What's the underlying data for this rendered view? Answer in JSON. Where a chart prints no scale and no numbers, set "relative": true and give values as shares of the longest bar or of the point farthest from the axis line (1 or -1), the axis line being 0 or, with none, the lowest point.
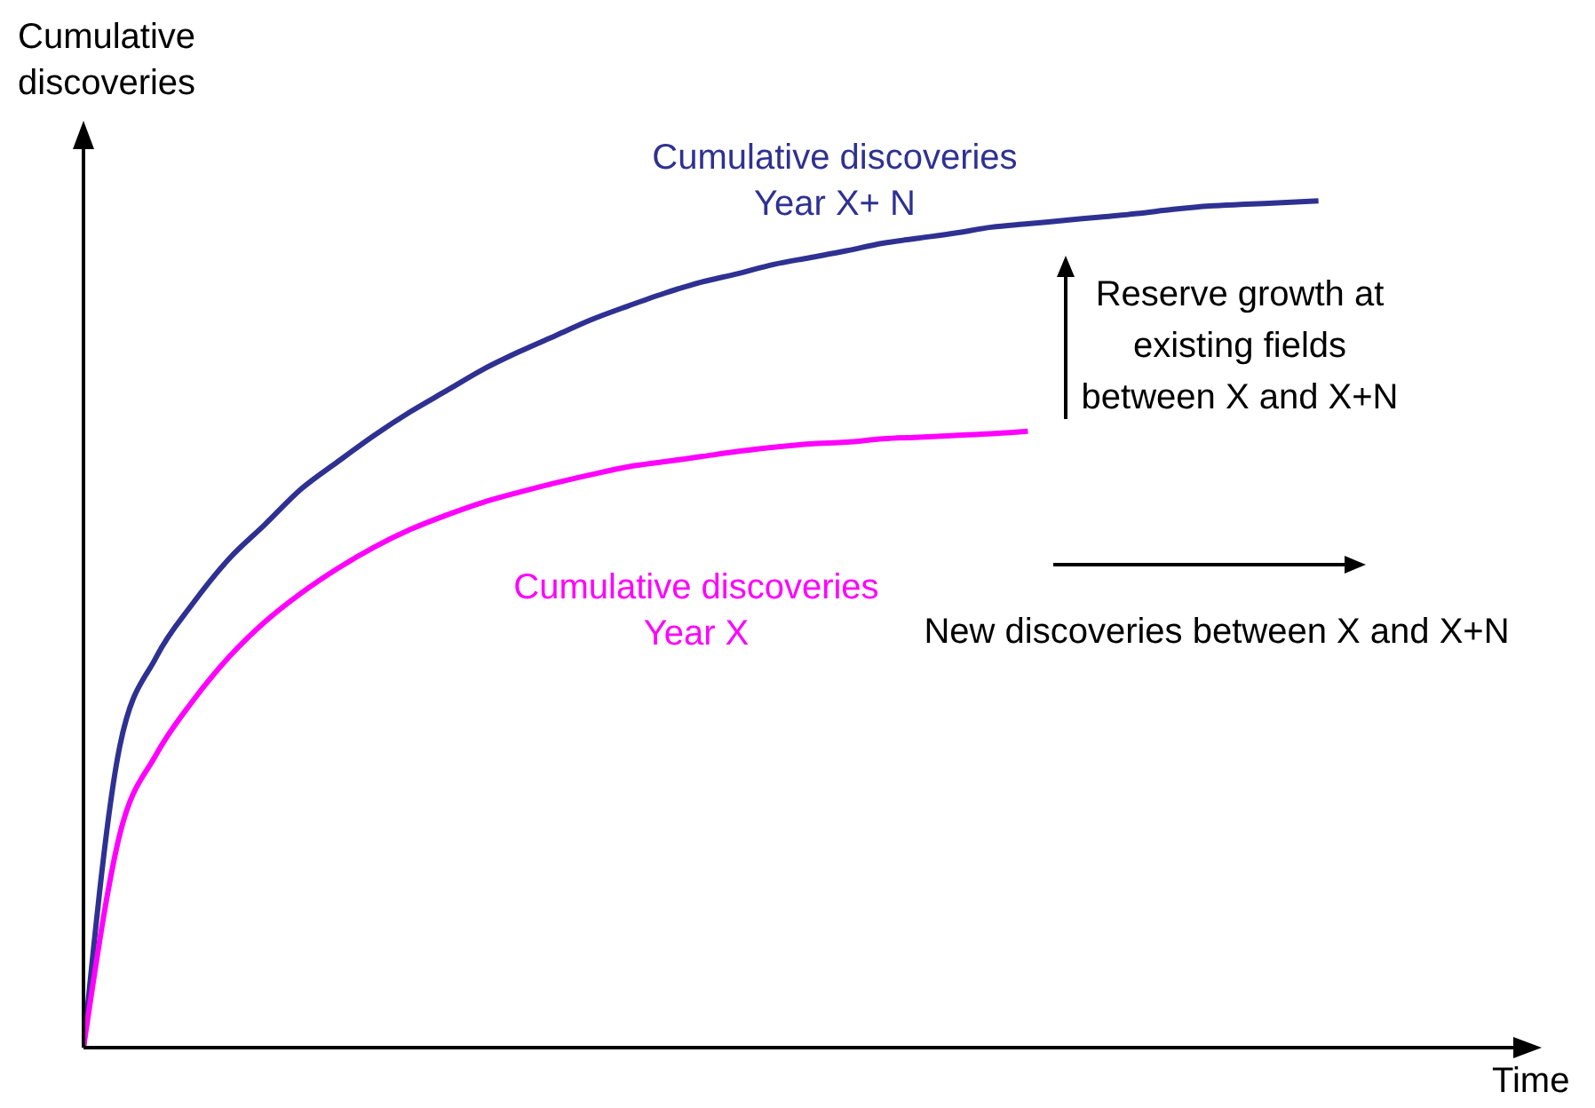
{
  "chart_data": {
    "type": "line",
    "relative": true,
    "xlabel": "Time",
    "ylabel": "Cumulative discoveries",
    "categories": [
      null,
      null,
      null,
      null,
      null,
      null,
      null,
      null,
      null,
      null,
      null,
      null,
      null,
      null,
      null,
      null,
      null,
      null,
      null,
      null,
      null,
      null,
      null,
      null,
      null,
      null,
      null,
      null,
      null,
      null,
      null,
      null,
      null,
      null,
      null,
      null,
      null,
      null,
      null,
      null,
      null
    ],
    "series": [
      {
        "name": "Cumulative discoveries Year X+ N",
        "color": "#2e3192",
        "values": [
          0,
          0.356,
          0.461,
          0.524,
          0.577,
          0.618,
          0.66,
          0.692,
          0.723,
          0.751,
          0.776,
          0.801,
          0.822,
          0.841,
          0.86,
          0.876,
          0.891,
          0.904,
          0.914,
          0.925,
          0.933,
          0.941,
          0.95,
          0.956,
          0.962,
          0.969,
          0.973,
          0.977,
          0.981,
          0.985,
          0.99,
          0.994,
          0.996,
          0.998,
          1,
          null,
          null,
          null,
          null,
          null,
          null
        ]
      },
      {
        "name": "Cumulative discoveries Year X",
        "color": "#ff00ff",
        "values": [
          0,
          0.252,
          0.346,
          0.409,
          0.461,
          0.503,
          0.537,
          0.566,
          0.591,
          0.612,
          0.629,
          0.644,
          0.656,
          0.667,
          0.677,
          0.686,
          0.692,
          0.698,
          0.704,
          0.709,
          0.713,
          0.715,
          0.719,
          0.721,
          0.723,
          0.725,
          0.728,
          null,
          null,
          null,
          null,
          null,
          null,
          null,
          null,
          null,
          null,
          null,
          null,
          null,
          null
        ]
      }
    ],
    "annotations": [
      "Reserve growth at existing fields between X and X+N",
      "New discoveries between X and X+N"
    ],
    "marker": "none",
    "line_style": "solid"
  }
}
